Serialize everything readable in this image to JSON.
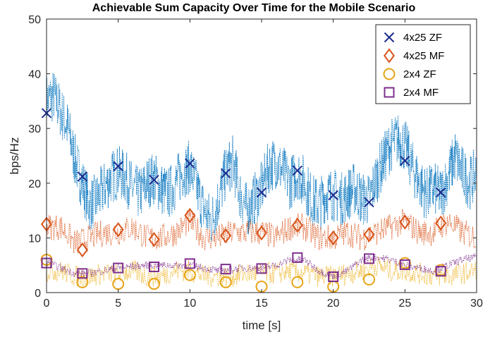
{
  "chart_data": {
    "type": "line",
    "title": "Achievable Sum Capacity Over Time for the Mobile Scenario",
    "xlabel": "time [s]",
    "ylabel": "bps/Hz",
    "xlim": [
      0,
      30
    ],
    "ylim": [
      0,
      50
    ],
    "xticks": [
      "0",
      "5",
      "10",
      "15",
      "20",
      "25",
      "30"
    ],
    "yticks": [
      "0",
      "10",
      "20",
      "30",
      "40",
      "50"
    ],
    "grid": false,
    "legend_position": "top-right",
    "x": [
      0,
      2.5,
      5,
      7.5,
      10,
      12.5,
      15,
      17.5,
      20,
      22.5,
      25,
      27.5
    ],
    "series": [
      {
        "name": "4x25 ZF",
        "marker": "x",
        "color": "#1f2e8f",
        "trace_color": "#0072bd",
        "values": [
          32.8,
          21.2,
          23.1,
          20.6,
          23.6,
          21.8,
          18.3,
          22.3,
          17.8,
          16.5,
          24.1,
          18.3
        ],
        "trace": [
          [
            0,
            35
          ],
          [
            0.5,
            36
          ],
          [
            1,
            33
          ],
          [
            1.5,
            30
          ],
          [
            2,
            24
          ],
          [
            2.5,
            20
          ],
          [
            3,
            16
          ],
          [
            3.5,
            17
          ],
          [
            4,
            19
          ],
          [
            4.5,
            21
          ],
          [
            5,
            22
          ],
          [
            5.5,
            21
          ],
          [
            6,
            19
          ],
          [
            6.5,
            18
          ],
          [
            7,
            20
          ],
          [
            7.5,
            21
          ],
          [
            8,
            19
          ],
          [
            8.5,
            18
          ],
          [
            9,
            20
          ],
          [
            9.5,
            22
          ],
          [
            10,
            23
          ],
          [
            10.5,
            19
          ],
          [
            11,
            15
          ],
          [
            11.5,
            13
          ],
          [
            12,
            17
          ],
          [
            12.5,
            22
          ],
          [
            13,
            24
          ],
          [
            13.5,
            18
          ],
          [
            14,
            15
          ],
          [
            14.5,
            17
          ],
          [
            15,
            19
          ],
          [
            15.5,
            23
          ],
          [
            16,
            24
          ],
          [
            16.5,
            22
          ],
          [
            17,
            20
          ],
          [
            17.5,
            22
          ],
          [
            18,
            20
          ],
          [
            18.5,
            17
          ],
          [
            19,
            16
          ],
          [
            19.5,
            18
          ],
          [
            20,
            18
          ],
          [
            20.5,
            17
          ],
          [
            21,
            18
          ],
          [
            21.5,
            19
          ],
          [
            22,
            17
          ],
          [
            22.5,
            17
          ],
          [
            23,
            21
          ],
          [
            23.5,
            24
          ],
          [
            24,
            27
          ],
          [
            24.5,
            28
          ],
          [
            25,
            27
          ],
          [
            25.5,
            23
          ],
          [
            26,
            20
          ],
          [
            26.5,
            18
          ],
          [
            27,
            19
          ],
          [
            27.5,
            18
          ],
          [
            28,
            21
          ],
          [
            28.5,
            25
          ],
          [
            29,
            22
          ],
          [
            29.5,
            20
          ],
          [
            30,
            22
          ]
        ]
      },
      {
        "name": "4x25 MF",
        "marker": "diamond",
        "color": "#d95319",
        "trace_color": "#d95319",
        "values": [
          12.5,
          7.8,
          11.5,
          9.7,
          14.1,
          10.4,
          10.9,
          12.3,
          10.0,
          10.6,
          12.9,
          12.7
        ],
        "trace": [
          [
            0,
            12
          ],
          [
            1,
            12
          ],
          [
            2,
            9
          ],
          [
            3,
            10
          ],
          [
            4,
            11
          ],
          [
            5,
            11
          ],
          [
            6,
            12
          ],
          [
            7,
            10
          ],
          [
            8,
            10
          ],
          [
            9,
            11
          ],
          [
            10,
            13
          ],
          [
            11,
            10
          ],
          [
            12,
            10
          ],
          [
            13,
            11
          ],
          [
            14,
            11
          ],
          [
            15,
            11
          ],
          [
            16,
            10
          ],
          [
            17,
            12
          ],
          [
            18,
            12
          ],
          [
            19,
            10
          ],
          [
            20,
            10
          ],
          [
            21,
            11
          ],
          [
            22,
            10
          ],
          [
            23,
            11
          ],
          [
            24,
            12
          ],
          [
            25,
            13
          ],
          [
            26,
            11
          ],
          [
            27,
            11
          ],
          [
            28,
            13
          ],
          [
            29,
            11
          ],
          [
            30,
            10
          ]
        ]
      },
      {
        "name": "2x4 ZF",
        "marker": "circle",
        "color": "#e8a317",
        "trace_color": "#edb120",
        "values": [
          6.0,
          1.9,
          1.6,
          1.6,
          3.2,
          1.9,
          1.1,
          1.9,
          1.1,
          2.4,
          5.4,
          4.1
        ],
        "trace": [
          [
            0,
            4
          ],
          [
            1,
            4
          ],
          [
            2,
            3
          ],
          [
            3,
            3
          ],
          [
            4,
            3.5
          ],
          [
            5,
            3.5
          ],
          [
            6,
            4
          ],
          [
            7,
            3
          ],
          [
            8,
            3
          ],
          [
            9,
            4
          ],
          [
            10,
            4
          ],
          [
            11,
            3
          ],
          [
            12,
            3
          ],
          [
            13,
            3
          ],
          [
            14,
            3.5
          ],
          [
            15,
            3.5
          ],
          [
            16,
            3.5
          ],
          [
            17,
            4
          ],
          [
            18,
            3.5
          ],
          [
            19,
            3
          ],
          [
            20,
            3
          ],
          [
            21,
            3.5
          ],
          [
            22,
            4
          ],
          [
            23,
            5
          ],
          [
            24,
            4
          ],
          [
            25,
            4
          ],
          [
            26,
            3.5
          ],
          [
            27,
            3
          ],
          [
            28,
            3
          ],
          [
            29,
            3.5
          ],
          [
            30,
            4
          ]
        ]
      },
      {
        "name": "2x4 MF",
        "marker": "square",
        "color": "#7e2f8e",
        "trace_color": "#7e2f8e",
        "values": [
          5.4,
          3.5,
          4.5,
          4.7,
          5.3,
          4.3,
          4.4,
          6.4,
          2.9,
          6.2,
          5.1,
          3.9
        ],
        "trace": [
          [
            0,
            5.5
          ],
          [
            1,
            4.5
          ],
          [
            2,
            3.5
          ],
          [
            3,
            3.5
          ],
          [
            4,
            4
          ],
          [
            5,
            4.5
          ],
          [
            6,
            4.8
          ],
          [
            7,
            5
          ],
          [
            8,
            5
          ],
          [
            9,
            5
          ],
          [
            10,
            5
          ],
          [
            11,
            4.5
          ],
          [
            12,
            4
          ],
          [
            13,
            4.3
          ],
          [
            14,
            4.5
          ],
          [
            15,
            4.5
          ],
          [
            16,
            5
          ],
          [
            17,
            6
          ],
          [
            18,
            6
          ],
          [
            19,
            4
          ],
          [
            20,
            3
          ],
          [
            21,
            4
          ],
          [
            22,
            6
          ],
          [
            23,
            6.5
          ],
          [
            24,
            6
          ],
          [
            25,
            5
          ],
          [
            26,
            4.5
          ],
          [
            27,
            4
          ],
          [
            28,
            5
          ],
          [
            29,
            6
          ],
          [
            30,
            6.5
          ]
        ]
      }
    ]
  }
}
